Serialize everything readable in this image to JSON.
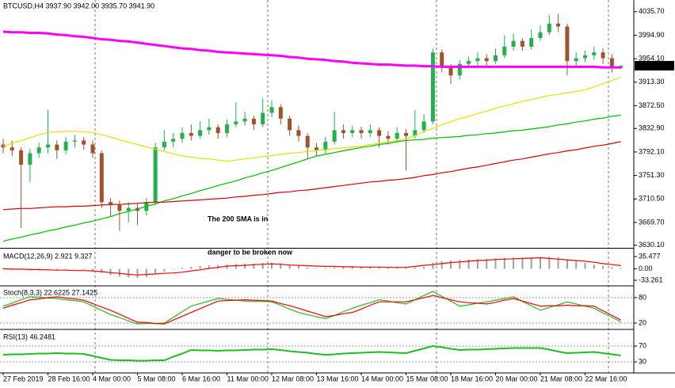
{
  "chart_data": [
    {
      "type": "candlestick",
      "title": "BTCUSD,H4 3937.90 3942.00 3935.70 3941.90",
      "categories": [
        "27 Feb 2019",
        null,
        null,
        null,
        null,
        "28 Feb 16:00",
        null,
        null,
        null,
        null,
        "4 Mar 00:00",
        null,
        null,
        null,
        null,
        "5 Mar 08:00",
        null,
        null,
        null,
        null,
        "6 Mar 16:00",
        null,
        null,
        null,
        null,
        "11 Mar 00:00",
        null,
        null,
        null,
        null,
        "12 Mar 08:00",
        null,
        null,
        null,
        null,
        "13 Mar 16:00",
        null,
        null,
        null,
        null,
        "14 Mar 00:00",
        null,
        null,
        null,
        null,
        "15 Mar 08:00",
        null,
        null,
        null,
        null,
        "18 Mar 16:00",
        null,
        null,
        null,
        null,
        "20 Mar 00:00",
        null,
        null,
        null,
        null,
        "21 Mar 08:00",
        null,
        null,
        null,
        null,
        "22 Mar 16:00",
        null,
        null,
        null,
        null
      ],
      "open": [
        3805,
        3800,
        3795,
        3770,
        3790,
        3800,
        3805,
        3795,
        3810,
        3812,
        3805,
        3790,
        3705,
        3700,
        3690,
        3695,
        3690,
        3705,
        3800,
        3810,
        3815,
        3825,
        3820,
        3830,
        3835,
        3825,
        3840,
        3845,
        3850,
        3840,
        3860,
        3870,
        3850,
        3830,
        3820,
        3800,
        3795,
        3810,
        3830,
        3825,
        3830,
        3825,
        3830,
        3820,
        3815,
        3825,
        3820,
        3830,
        3845,
        3965,
        3940,
        3925,
        3945,
        3950,
        3955,
        3950,
        3960,
        3975,
        3985,
        3975,
        3990,
        4000,
        4015,
        4010,
        3950,
        3955,
        3960,
        3965,
        3955,
        3937.9
      ],
      "high": [
        3815,
        3812,
        3800,
        3798,
        3808,
        3865,
        3812,
        3818,
        3822,
        3818,
        3812,
        3795,
        3712,
        3708,
        3705,
        3702,
        3712,
        3808,
        3830,
        3825,
        3835,
        3840,
        3845,
        3850,
        3840,
        3848,
        3878,
        3862,
        3855,
        3885,
        3882,
        3875,
        3855,
        3838,
        3825,
        3808,
        3818,
        3862,
        3840,
        3838,
        3836,
        3840,
        3835,
        3828,
        3835,
        3832,
        3865,
        3858,
        3972,
        3970,
        3945,
        3952,
        3958,
        3965,
        3962,
        3972,
        3995,
        3998,
        3990,
        4005,
        4012,
        4030,
        4032,
        4015,
        3965,
        3968,
        3975,
        3972,
        3962,
        3942
      ],
      "low": [
        3790,
        3785,
        3660,
        3740,
        3782,
        3790,
        3780,
        3788,
        3800,
        3796,
        3782,
        3695,
        3680,
        3655,
        3670,
        3665,
        3682,
        3700,
        3795,
        3800,
        3808,
        3812,
        3815,
        3822,
        3815,
        3818,
        3835,
        3838,
        3830,
        3835,
        3852,
        3840,
        3820,
        3810,
        3780,
        3785,
        3788,
        3805,
        3815,
        3818,
        3815,
        3818,
        3800,
        3805,
        3808,
        3760,
        3815,
        3825,
        3840,
        3930,
        3910,
        3918,
        3938,
        3942,
        3940,
        3945,
        3955,
        3968,
        3968,
        3970,
        3985,
        3995,
        4000,
        3925,
        3942,
        3948,
        3952,
        3945,
        3930,
        3935.7
      ],
      "close": [
        3800,
        3795,
        3770,
        3790,
        3800,
        3805,
        3795,
        3810,
        3812,
        3805,
        3790,
        3705,
        3700,
        3690,
        3695,
        3690,
        3705,
        3800,
        3810,
        3815,
        3825,
        3820,
        3830,
        3835,
        3825,
        3840,
        3845,
        3850,
        3840,
        3860,
        3870,
        3850,
        3830,
        3820,
        3800,
        3795,
        3810,
        3830,
        3825,
        3830,
        3825,
        3830,
        3820,
        3815,
        3825,
        3820,
        3830,
        3845,
        3965,
        3940,
        3925,
        3945,
        3950,
        3955,
        3950,
        3960,
        3975,
        3985,
        3975,
        3990,
        4000,
        4015,
        4010,
        3950,
        3955,
        3960,
        3965,
        3955,
        3937.9,
        3941.9
      ],
      "bull_color": "#22b14c",
      "bear_color": "#a0522d",
      "ylim": [
        3627,
        4056
      ],
      "yticks": [
        {
          "value": 4035.7,
          "label": "4035.70"
        },
        {
          "value": 3994.9,
          "label": "3994.90"
        },
        {
          "value": 3954.1,
          "label": "3954.10"
        },
        {
          "value": 3913.3,
          "label": "3913.30"
        },
        {
          "value": 3872.5,
          "label": "3872.50"
        },
        {
          "value": 3832.9,
          "label": "3832.90"
        },
        {
          "value": 3792.1,
          "label": "3792.10"
        },
        {
          "value": 3751.3,
          "label": "3751.30"
        },
        {
          "value": 3710.5,
          "label": "3710.50"
        },
        {
          "value": 3669.7,
          "label": "3669.70"
        },
        {
          "value": 3630.1,
          "label": "3630.10"
        }
      ],
      "series": [
        {
          "color": "#e8e000",
          "values": [
            3802,
            3807,
            3812,
            3817,
            3822,
            3826,
            3827,
            3828,
            3828,
            3827,
            3826,
            3822,
            3818,
            3813,
            3809,
            3805,
            3801,
            3797,
            3793,
            3789,
            3785,
            3783,
            3781,
            3780,
            3778,
            3776,
            3778,
            3780,
            3782,
            3784,
            3786,
            3788,
            3790,
            3791,
            3793,
            3795,
            3796,
            3798,
            3799,
            3801,
            3802,
            3805,
            3807,
            3810,
            3812,
            3815,
            3821,
            3827,
            3833,
            3839,
            3845,
            3850,
            3854,
            3859,
            3863,
            3868,
            3872,
            3876,
            3880,
            3883,
            3887,
            3890,
            3892,
            3895,
            3897,
            3900,
            3905,
            3911,
            3916,
            3922
          ]
        },
        {
          "color": "#00c000",
          "values": [
            3637,
            3641,
            3644,
            3648,
            3651,
            3655,
            3658,
            3662,
            3665,
            3669,
            3672,
            3676,
            3680,
            3685,
            3689,
            3693,
            3698,
            3702,
            3707,
            3711,
            3716,
            3720,
            3725,
            3729,
            3734,
            3738,
            3742,
            3747,
            3751,
            3756,
            3760,
            3765,
            3770,
            3775,
            3780,
            3785,
            3788,
            3791,
            3794,
            3797,
            3800,
            3802,
            3805,
            3807,
            3810,
            3812,
            3813,
            3814,
            3816,
            3817,
            3818,
            3819,
            3821,
            3822,
            3824,
            3825,
            3827,
            3829,
            3830,
            3832,
            3834,
            3836,
            3839,
            3841,
            3844,
            3846,
            3849,
            3851,
            3854,
            3856
          ]
        },
        {
          "color": "#e00000",
          "values": [
            3692,
            3693,
            3694,
            3694,
            3695,
            3696,
            3697,
            3697,
            3698,
            3698,
            3699,
            3700,
            3701,
            3701,
            3702,
            3703,
            3704,
            3705,
            3705,
            3706,
            3707,
            3708,
            3709,
            3710,
            3711,
            3712,
            3714,
            3715,
            3717,
            3718,
            3720,
            3722,
            3723,
            3725,
            3726,
            3728,
            3730,
            3732,
            3734,
            3736,
            3738,
            3740,
            3741,
            3743,
            3744,
            3746,
            3748,
            3751,
            3753,
            3756,
            3758,
            3761,
            3764,
            3766,
            3769,
            3772,
            3775,
            3778,
            3780,
            3783,
            3786,
            3789,
            3791,
            3794,
            3796,
            3799,
            3802,
            3804,
            3807,
            3810
          ]
        },
        {
          "color": "#ff00ff",
          "values": [
            4001,
            4000,
            4000,
            3999,
            3999,
            3998,
            3996,
            3995,
            3993,
            3992,
            3990,
            3988,
            3987,
            3985,
            3984,
            3982,
            3980,
            3978,
            3976,
            3974,
            3972,
            3971,
            3969,
            3968,
            3966,
            3965,
            3964,
            3963,
            3962,
            3961,
            3960,
            3959,
            3957,
            3956,
            3954,
            3953,
            3952,
            3950,
            3949,
            3947,
            3946,
            3945,
            3944,
            3944,
            3943,
            3942,
            3942,
            3941,
            3941,
            3940,
            3940,
            3940,
            3940,
            3940,
            3940,
            3940,
            3940,
            3940,
            3940,
            3940,
            3940,
            3940,
            3940,
            3940,
            3940,
            3940,
            3940,
            3939,
            3939,
            3939
          ]
        }
      ],
      "last_price": {
        "value": 3941.9,
        "label": "3941.90"
      },
      "annotation": [
        "The 200 SMA is in",
        "danger to be broken now"
      ],
      "annotation_color": "#e8202a"
    },
    {
      "type": "macd",
      "title": "MACD(12,26,9) 2.921 9.327",
      "histogram": {
        "color": "#a0a0a0",
        "values": [
          2,
          1,
          -2,
          -4,
          -5,
          -4,
          -3,
          -2,
          -1,
          -2,
          -5,
          -12,
          -18,
          -22,
          -25,
          -26,
          -24,
          -14,
          -8,
          -2,
          3,
          6,
          8,
          10,
          11,
          12,
          14,
          15,
          15,
          17,
          18,
          16,
          12,
          8,
          4,
          2,
          2,
          4,
          5,
          5,
          5,
          5,
          4,
          3,
          3,
          3,
          4,
          6,
          18,
          22,
          24,
          26,
          27,
          28,
          29,
          30,
          32,
          33,
          32,
          33,
          34,
          35,
          34,
          26,
          22,
          17,
          12,
          8,
          5,
          2.921
        ]
      },
      "series": [
        {
          "color": "#ff0000",
          "values": [
            0,
            -1,
            -1,
            -2,
            -2,
            -3,
            -4,
            -4,
            -5,
            -5,
            -6,
            -8,
            -11,
            -13,
            -16,
            -18,
            -16,
            -15,
            -13,
            -12,
            -10,
            -6,
            -3,
            1,
            4,
            8,
            9,
            10,
            12,
            13,
            14,
            13,
            11,
            10,
            9,
            8,
            7,
            7,
            6,
            6,
            5,
            5,
            5,
            4,
            4,
            4,
            7,
            10,
            12,
            15,
            18,
            20,
            22,
            24,
            25,
            27,
            28,
            29,
            30,
            31,
            32,
            30,
            28,
            26,
            24,
            22,
            19,
            15,
            12,
            9.327
          ]
        }
      ],
      "ylim": [
        -47,
        53.8
      ],
      "yticks": [
        35.477,
        {
          "value": 0,
          "label": "0.00"
        },
        -33.261
      ]
    },
    {
      "type": "line",
      "title": "Stoch(8,3,3) 22.6225 27.1425",
      "series": [
        {
          "color": "#1fbf1f",
          "values": [
            60,
            67,
            75,
            82,
            81,
            79,
            78,
            75,
            73,
            70,
            60,
            50,
            40,
            33,
            25,
            18,
            19,
            19,
            20,
            33,
            47,
            60,
            66,
            72,
            78,
            76,
            74,
            72,
            71,
            71,
            70,
            62,
            53,
            45,
            40,
            35,
            30,
            38,
            47,
            55,
            62,
            68,
            75,
            72,
            68,
            65,
            75,
            85,
            95,
            83,
            72,
            60,
            63,
            67,
            70,
            74,
            78,
            82,
            71,
            61,
            50,
            57,
            63,
            70,
            65,
            60,
            55,
            44,
            34,
            22.6225
          ]
        },
        {
          "color": "#ff0000",
          "values": [
            55,
            62,
            68,
            75,
            77,
            80,
            82,
            79,
            77,
            74,
            66,
            58,
            50,
            41,
            31,
            22,
            21,
            19,
            18,
            27,
            36,
            45,
            54,
            63,
            72,
            73,
            74,
            75,
            74,
            73,
            72,
            66,
            61,
            55,
            48,
            42,
            35,
            38,
            42,
            45,
            53,
            62,
            70,
            70,
            70,
            70,
            75,
            80,
            85,
            80,
            75,
            70,
            68,
            67,
            65,
            69,
            74,
            78,
            72,
            66,
            60,
            61,
            61,
            62,
            61,
            61,
            60,
            49,
            38,
            27.1425
          ]
        }
      ],
      "ylim": [
        8.75,
        106
      ],
      "yticks": [
        80,
        20
      ]
    },
    {
      "type": "line",
      "title": "RSI(13) 46.2481",
      "series": [
        {
          "color": "#1fbf1f",
          "values": [
            48,
            49,
            49,
            50,
            51,
            51,
            52,
            51,
            51,
            50,
            45,
            40,
            35,
            34,
            34,
            33,
            33,
            34,
            34,
            43,
            51,
            60,
            59,
            59,
            58,
            59,
            59,
            60,
            61,
            61,
            62,
            60,
            57,
            55,
            53,
            50,
            48,
            49,
            51,
            52,
            53,
            54,
            55,
            54,
            53,
            52,
            58,
            64,
            70,
            67,
            63,
            60,
            61,
            61,
            62,
            63,
            64,
            65,
            65,
            65,
            65,
            61,
            56,
            52,
            53,
            54,
            55,
            52,
            49,
            46.2481
          ]
        }
      ],
      "ylim": [
        4,
        108
      ],
      "yticks": [
        70,
        30
      ]
    }
  ]
}
